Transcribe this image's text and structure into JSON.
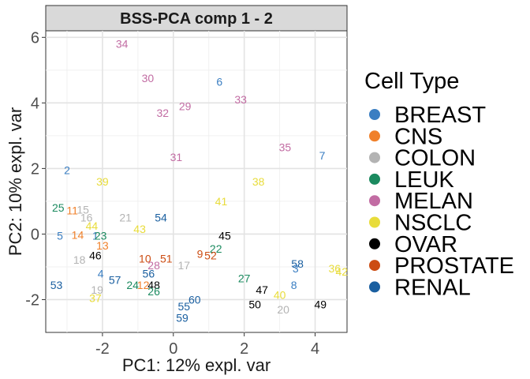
{
  "chart_data": {
    "type": "scatter",
    "title": "BSS-PCA comp 1 - 2",
    "xlabel": "PC1: 12% expl. var",
    "ylabel": "PC2: 10% expl. var",
    "xlim": [
      -3.6,
      4.9
    ],
    "ylim": [
      -3.0,
      6.2
    ],
    "x_ticks": [
      -2,
      0,
      2,
      4
    ],
    "y_ticks": [
      -2,
      0,
      2,
      4,
      6
    ],
    "x_tick_labels": [
      "-2",
      "0",
      "2",
      "4"
    ],
    "y_tick_labels": [
      "-2",
      "0",
      "2",
      "4",
      "6"
    ],
    "grid": true,
    "legend": {
      "title": "Cell Type",
      "position": "right",
      "entries": [
        {
          "name": "BREAST",
          "color": "#3a7ec2"
        },
        {
          "name": "CNS",
          "color": "#f0802a"
        },
        {
          "name": "COLON",
          "color": "#b3b3b3"
        },
        {
          "name": "LEUK",
          "color": "#1b8a5f"
        },
        {
          "name": "MELAN",
          "color": "#c26ca3"
        },
        {
          "name": "NSCLC",
          "color": "#e8dc3a"
        },
        {
          "name": "OVAR",
          "color": "#000000"
        },
        {
          "name": "PROSTATE",
          "color": "#cc4c12"
        },
        {
          "name": "RENAL",
          "color": "#1a5fa0"
        }
      ]
    },
    "points": [
      {
        "label": "34",
        "x": -1.45,
        "y": 5.8,
        "group": "MELAN"
      },
      {
        "label": "30",
        "x": -0.72,
        "y": 4.75,
        "group": "MELAN"
      },
      {
        "label": "6",
        "x": 1.3,
        "y": 4.65,
        "group": "BREAST"
      },
      {
        "label": "33",
        "x": 1.9,
        "y": 4.1,
        "group": "MELAN"
      },
      {
        "label": "29",
        "x": 0.33,
        "y": 3.9,
        "group": "MELAN"
      },
      {
        "label": "32",
        "x": -0.3,
        "y": 3.7,
        "group": "MELAN"
      },
      {
        "label": "35",
        "x": 3.15,
        "y": 2.65,
        "group": "MELAN"
      },
      {
        "label": "7",
        "x": 4.2,
        "y": 2.4,
        "group": "BREAST"
      },
      {
        "label": "31",
        "x": 0.08,
        "y": 2.35,
        "group": "MELAN"
      },
      {
        "label": "2",
        "x": -3.0,
        "y": 1.95,
        "group": "BREAST"
      },
      {
        "label": "39",
        "x": -2.0,
        "y": 1.6,
        "group": "NSCLC"
      },
      {
        "label": "38",
        "x": 2.4,
        "y": 1.6,
        "group": "NSCLC"
      },
      {
        "label": "41",
        "x": 1.35,
        "y": 1.0,
        "group": "NSCLC"
      },
      {
        "label": "25",
        "x": -3.25,
        "y": 0.8,
        "group": "LEUK"
      },
      {
        "label": "11",
        "x": -2.85,
        "y": 0.72,
        "group": "CNS"
      },
      {
        "label": "15",
        "x": -2.55,
        "y": 0.75,
        "group": "COLON"
      },
      {
        "label": "16",
        "x": -2.45,
        "y": 0.5,
        "group": "COLON"
      },
      {
        "label": "21",
        "x": -1.35,
        "y": 0.5,
        "group": "COLON"
      },
      {
        "label": "54",
        "x": -0.35,
        "y": 0.5,
        "group": "RENAL"
      },
      {
        "label": "44",
        "x": -2.3,
        "y": 0.25,
        "group": "NSCLC"
      },
      {
        "label": "43",
        "x": -0.95,
        "y": 0.15,
        "group": "NSCLC"
      },
      {
        "label": "5",
        "x": -3.2,
        "y": -0.05,
        "group": "BREAST"
      },
      {
        "label": "14",
        "x": -2.7,
        "y": -0.02,
        "group": "CNS"
      },
      {
        "label": "1",
        "x": -2.2,
        "y": -0.05,
        "group": "BREAST"
      },
      {
        "label": "23",
        "x": -2.05,
        "y": -0.05,
        "group": "LEUK"
      },
      {
        "label": "45",
        "x": 1.45,
        "y": -0.05,
        "group": "OVAR"
      },
      {
        "label": "13",
        "x": -2.0,
        "y": -0.35,
        "group": "CNS"
      },
      {
        "label": "22",
        "x": 1.2,
        "y": -0.45,
        "group": "LEUK"
      },
      {
        "label": "9",
        "x": 0.75,
        "y": -0.6,
        "group": "PROSTATE"
      },
      {
        "label": "52",
        "x": 1.05,
        "y": -0.65,
        "group": "PROSTATE"
      },
      {
        "label": "46",
        "x": -2.2,
        "y": -0.65,
        "group": "OVAR"
      },
      {
        "label": "18",
        "x": -2.65,
        "y": -0.78,
        "group": "COLON"
      },
      {
        "label": "10",
        "x": -0.8,
        "y": -0.75,
        "group": "PROSTATE"
      },
      {
        "label": "51",
        "x": -0.2,
        "y": -0.75,
        "group": "PROSTATE"
      },
      {
        "label": "28",
        "x": -0.55,
        "y": -0.95,
        "group": "MELAN"
      },
      {
        "label": "17",
        "x": 0.3,
        "y": -0.95,
        "group": "COLON"
      },
      {
        "label": "58",
        "x": 3.5,
        "y": -0.9,
        "group": "RENAL"
      },
      {
        "label": "3",
        "x": 3.45,
        "y": -1.05,
        "group": "BREAST"
      },
      {
        "label": "36",
        "x": 4.55,
        "y": -1.05,
        "group": "NSCLC"
      },
      {
        "label": "42",
        "x": 4.75,
        "y": -1.15,
        "group": "NSCLC"
      },
      {
        "label": "4",
        "x": -2.05,
        "y": -1.2,
        "group": "BREAST"
      },
      {
        "label": "56",
        "x": -0.7,
        "y": -1.2,
        "group": "RENAL"
      },
      {
        "label": "57",
        "x": -1.65,
        "y": -1.4,
        "group": "RENAL"
      },
      {
        "label": "27",
        "x": 2.0,
        "y": -1.35,
        "group": "LEUK"
      },
      {
        "label": "53",
        "x": -3.3,
        "y": -1.55,
        "group": "RENAL"
      },
      {
        "label": "24",
        "x": -1.15,
        "y": -1.55,
        "group": "LEUK"
      },
      {
        "label": "12",
        "x": -0.85,
        "y": -1.55,
        "group": "CNS"
      },
      {
        "label": "48",
        "x": -0.55,
        "y": -1.55,
        "group": "OVAR"
      },
      {
        "label": "8",
        "x": 3.4,
        "y": -1.55,
        "group": "BREAST"
      },
      {
        "label": "19",
        "x": -2.15,
        "y": -1.7,
        "group": "COLON"
      },
      {
        "label": "26",
        "x": -0.55,
        "y": -1.75,
        "group": "LEUK"
      },
      {
        "label": "47",
        "x": 2.5,
        "y": -1.7,
        "group": "OVAR"
      },
      {
        "label": "37",
        "x": -2.2,
        "y": -1.95,
        "group": "NSCLC"
      },
      {
        "label": "40",
        "x": 3.0,
        "y": -1.85,
        "group": "NSCLC"
      },
      {
        "label": "60",
        "x": 0.6,
        "y": -2.0,
        "group": "RENAL"
      },
      {
        "label": "55",
        "x": 0.3,
        "y": -2.2,
        "group": "RENAL"
      },
      {
        "label": "50",
        "x": 2.3,
        "y": -2.15,
        "group": "OVAR"
      },
      {
        "label": "20",
        "x": 3.1,
        "y": -2.3,
        "group": "COLON"
      },
      {
        "label": "49",
        "x": 4.15,
        "y": -2.15,
        "group": "OVAR"
      },
      {
        "label": "59",
        "x": 0.25,
        "y": -2.55,
        "group": "RENAL"
      }
    ]
  }
}
